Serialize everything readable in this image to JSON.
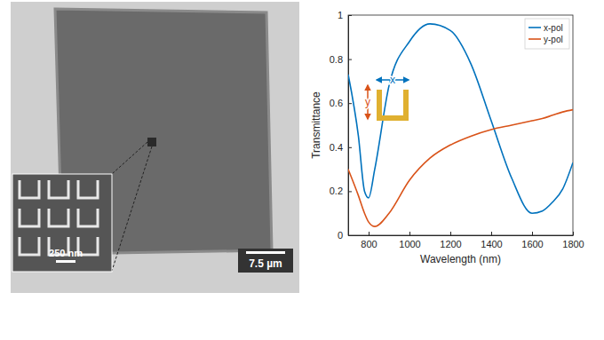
{
  "chart_data": {
    "type": "line",
    "x_label": "Wavelength (nm)",
    "y_label": "Transmittance",
    "x": [
      700,
      750,
      780,
      800,
      830,
      900,
      1000,
      1100,
      1200,
      1300,
      1400,
      1500,
      1600,
      1650,
      1700,
      1750,
      1800
    ],
    "series": [
      {
        "name": "x-pol",
        "color": "#0072bd",
        "values": [
          0.73,
          0.45,
          0.2,
          0.17,
          0.3,
          0.68,
          0.88,
          0.96,
          0.93,
          0.78,
          0.52,
          0.26,
          0.1,
          0.11,
          0.15,
          0.21,
          0.33
        ]
      },
      {
        "name": "y-pol",
        "color": "#d95319",
        "values": [
          0.3,
          0.18,
          0.1,
          0.06,
          0.04,
          0.1,
          0.25,
          0.35,
          0.41,
          0.45,
          0.48,
          0.5,
          0.52,
          0.53,
          0.545,
          0.56,
          0.57
        ]
      }
    ],
    "xlim": [
      700,
      1800
    ],
    "xticks": [
      800,
      1000,
      1200,
      1400,
      1600,
      1800
    ],
    "ylim": [
      0,
      1
    ],
    "yticks": [
      0,
      0.2,
      0.4,
      0.6,
      0.8,
      1
    ],
    "grid": false,
    "legend": "upper right",
    "annotations": [
      "x",
      "y"
    ]
  },
  "image": {
    "inset_scale_bar": "250 nm",
    "scale_bar": "7.5 µm"
  }
}
